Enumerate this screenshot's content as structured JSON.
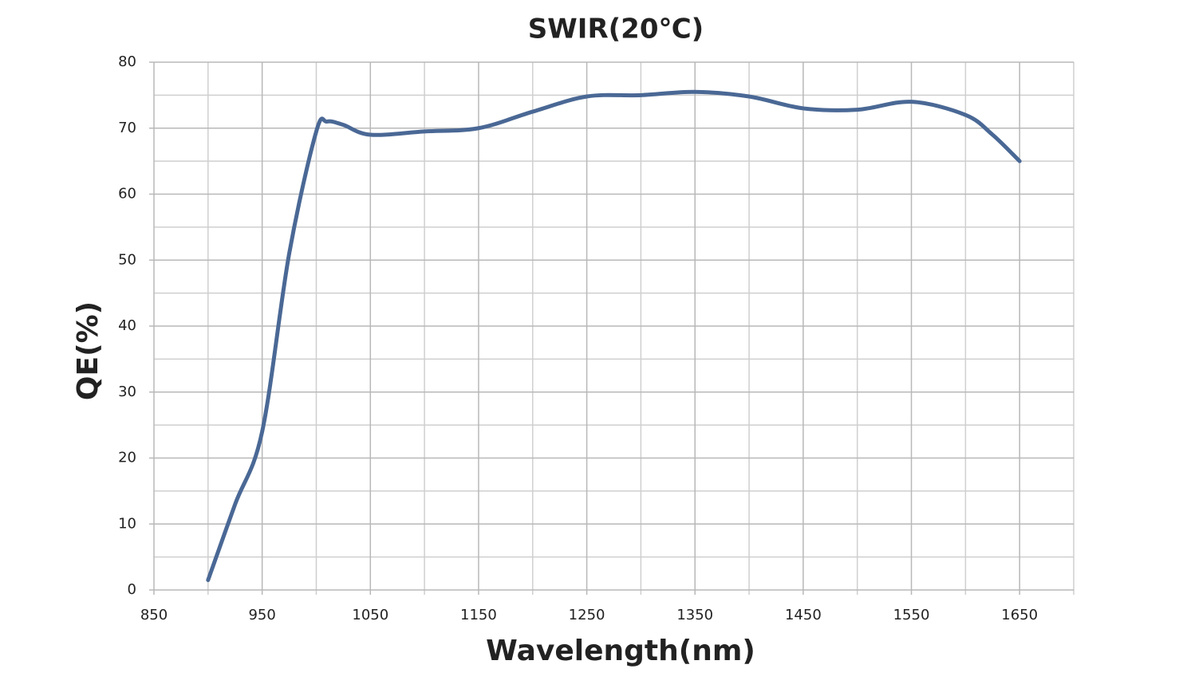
{
  "chart_data": {
    "type": "line",
    "title": "SWIR(20℃)",
    "x_label": "Wavelength(nm)",
    "y_label": "QE(%)",
    "x": [
      900,
      925,
      950,
      975,
      1000,
      1010,
      1025,
      1050,
      1100,
      1150,
      1200,
      1250,
      1300,
      1350,
      1400,
      1450,
      1500,
      1550,
      1600,
      1625,
      1650
    ],
    "values": [
      1.5,
      13,
      24,
      51,
      69.5,
      71,
      70.5,
      69,
      69.5,
      70,
      72.5,
      74.8,
      75,
      75.5,
      74.8,
      73,
      72.8,
      74,
      72,
      69,
      65
    ],
    "color": "#4a6895",
    "xlim": [
      850,
      1700
    ],
    "xticks": [
      850,
      950,
      1050,
      1150,
      1250,
      1350,
      1450,
      1550,
      1650
    ],
    "minor_xticks": [
      900,
      1000,
      1100,
      1200,
      1300,
      1400,
      1500,
      1600,
      1700
    ],
    "ylim": [
      0,
      80
    ],
    "yticks": [
      0,
      10,
      20,
      30,
      40,
      50,
      60,
      70,
      80
    ],
    "minor_yticks": [
      5,
      15,
      25,
      35,
      45,
      55,
      65,
      75
    ],
    "grid": true
  }
}
